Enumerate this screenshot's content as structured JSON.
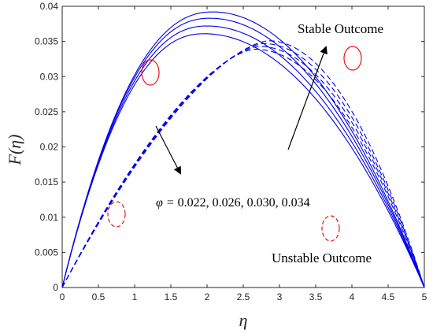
{
  "chart_data": {
    "type": "line",
    "xlabel": "η",
    "ylabel": "F(η)",
    "xlim": [
      0,
      5
    ],
    "ylim": [
      0,
      0.04
    ],
    "x_ticks": [
      "0",
      "0.5",
      "1",
      "1.5",
      "2",
      "2.5",
      "3",
      "3.5",
      "4",
      "4.5",
      "5"
    ],
    "y_ticks": [
      "0",
      "0.005",
      "0.01",
      "0.015",
      "0.02",
      "0.025",
      "0.03",
      "0.035",
      "0.04"
    ],
    "grid": false,
    "line_color": "#0000ee",
    "ellipse_color": "#ee1111",
    "series_groups": [
      {
        "style": "solid",
        "note": "stable branch",
        "peak_x": [
          2.08,
          2.04,
          2.0,
          1.96
        ],
        "peak_y": [
          0.0392,
          0.0383,
          0.0372,
          0.0361
        ],
        "curves_per_group": 4
      },
      {
        "style": "dashed",
        "note": "unstable branch",
        "peak_x": [
          2.85,
          2.78,
          2.72,
          2.66
        ],
        "peak_y": [
          0.0351,
          0.0347,
          0.0343,
          0.0339
        ],
        "curves_per_group": 4
      }
    ],
    "annotations": {
      "stable": "Stable Outcome",
      "unstable": "Unstable Outcome",
      "phi_prefix": "φ = ",
      "phi_values": "0.022, 0.026, 0.030, 0.034"
    }
  }
}
